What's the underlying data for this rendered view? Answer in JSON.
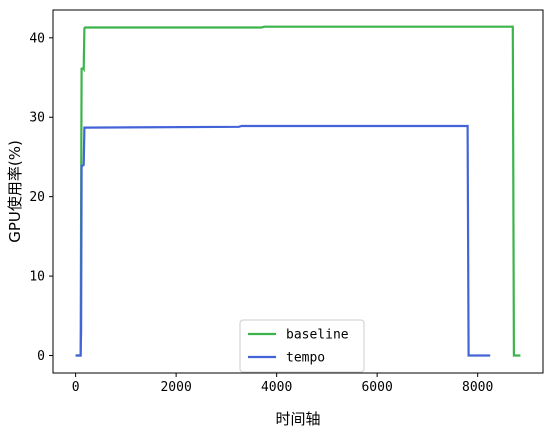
{
  "chart_data": {
    "type": "line",
    "title": "",
    "xlabel": "时间轴",
    "ylabel": "GPU使用率(%)",
    "xlim": [
      -450,
      9300
    ],
    "ylim": [
      -2.2,
      43.5
    ],
    "xticks": [
      0,
      2000,
      4000,
      6000,
      8000
    ],
    "yticks": [
      0,
      10,
      20,
      30,
      40
    ],
    "grid": false,
    "legend": "bottom-center",
    "series": [
      {
        "name": "baseline",
        "color": "#3cb44b",
        "x": [
          0,
          100,
          120,
          130,
          150,
          160,
          175,
          190,
          200,
          3700,
          3750,
          8700,
          8720,
          8750,
          8850
        ],
        "y": [
          0,
          0,
          36.1,
          36.1,
          36.2,
          36.1,
          41.2,
          41.3,
          41.3,
          41.3,
          41.4,
          41.4,
          0,
          0,
          0
        ]
      },
      {
        "name": "tempo",
        "color": "#4363d8",
        "x": [
          0,
          100,
          110,
          120,
          140,
          160,
          175,
          190,
          3250,
          3300,
          7800,
          7820,
          8250
        ],
        "y": [
          0,
          0,
          3,
          23.9,
          23.9,
          24,
          28.7,
          28.7,
          28.8,
          28.9,
          28.9,
          0,
          0
        ]
      }
    ]
  }
}
